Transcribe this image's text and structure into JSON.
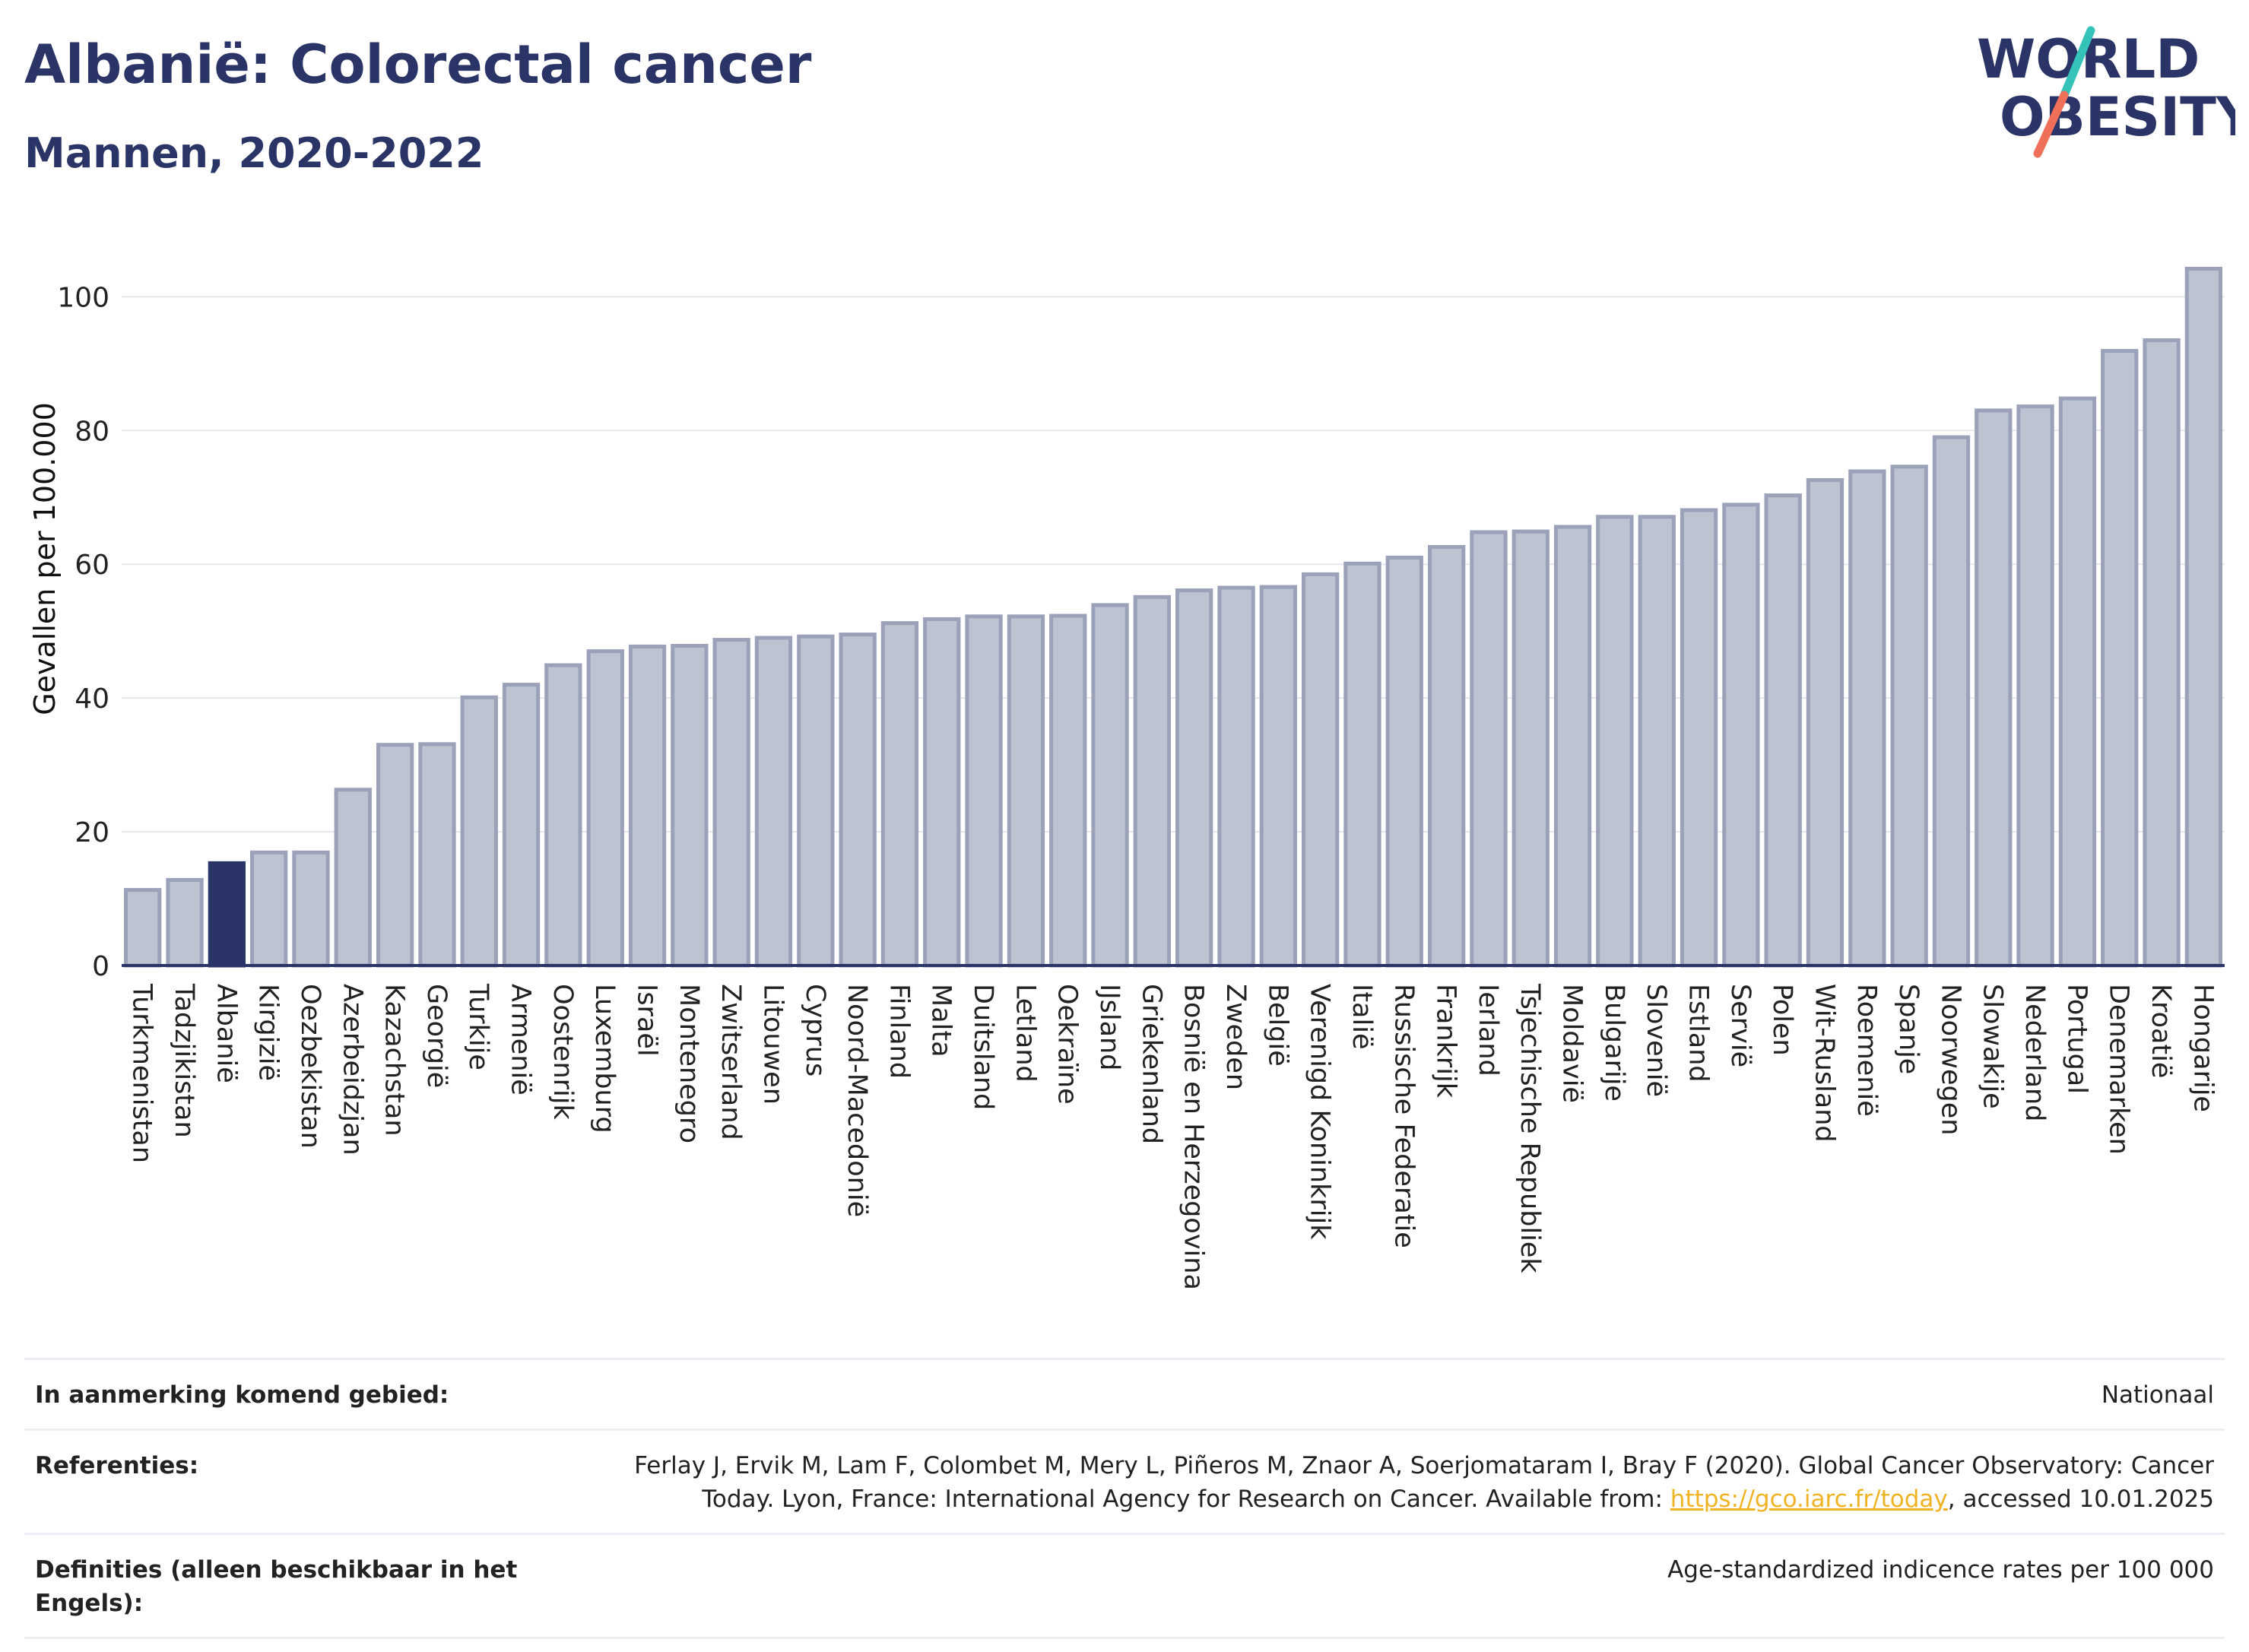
{
  "header": {
    "title": "Albanië: Colorectal cancer",
    "subtitle": "Mannen, 2020-2022"
  },
  "logo": {
    "line1": "WORLD",
    "line2": "OBESITY"
  },
  "colors": {
    "bar": "#bec3d1",
    "bar_border": "#9aa1b8",
    "highlight": "#2b3466",
    "text": "#2b3466",
    "slash_teal": "#35c2b8",
    "slash_coral": "#ef6f59"
  },
  "chart_data": {
    "type": "bar",
    "title": "Albanië: Colorectal cancer",
    "subtitle": "Mannen, 2020-2022",
    "xlabel": "",
    "ylabel": "Gevallen per 100.000",
    "ylim": [
      0,
      108
    ],
    "yticks": [
      0,
      20,
      40,
      60,
      80,
      100
    ],
    "grid": true,
    "highlight": "Albanië",
    "categories": [
      "Turkmenistan",
      "Tadzjikistan",
      "Albanië",
      "Kirgizië",
      "Oezbekistan",
      "Azerbeidzjan",
      "Kazachstan",
      "Georgië",
      "Turkije",
      "Armenië",
      "Oostenrijk",
      "Luxemburg",
      "Israël",
      "Montenegro",
      "Zwitserland",
      "Litouwen",
      "Cyprus",
      "Noord-Macedonië",
      "Finland",
      "Malta",
      "Duitsland",
      "Letland",
      "Oekraïne",
      "IJsland",
      "Griekenland",
      "Bosnië en Herzegovina",
      "Zweden",
      "België",
      "Verenigd Koninkrijk",
      "Italië",
      "Russische Federatie",
      "Frankrijk",
      "Ierland",
      "Tsjechische Republiek",
      "Moldavië",
      "Bulgarije",
      "Slovenië",
      "Estland",
      "Servië",
      "Polen",
      "Wit-Rusland",
      "Roemenië",
      "Spanje",
      "Noorwegen",
      "Slowakije",
      "Nederland",
      "Portugal",
      "Denemarken",
      "Kroatië",
      "Hongarije"
    ],
    "values": [
      11.3,
      12.8,
      15.3,
      16.9,
      16.9,
      26.3,
      33.0,
      33.1,
      40.1,
      42.0,
      44.9,
      47.0,
      47.7,
      47.8,
      48.7,
      49.0,
      49.2,
      49.5,
      51.2,
      51.8,
      52.2,
      52.2,
      52.3,
      53.9,
      55.1,
      56.1,
      56.5,
      56.6,
      58.5,
      60.1,
      61.0,
      62.6,
      64.8,
      64.9,
      65.6,
      67.1,
      67.1,
      68.1,
      68.9,
      70.3,
      72.6,
      73.9,
      74.6,
      79.0,
      83.0,
      83.6,
      84.8,
      91.9,
      93.5,
      104.2
    ]
  },
  "notes": [
    {
      "label": "In aanmerking komend gebied:",
      "value": "Nationaal"
    },
    {
      "label": "Referenties:",
      "value_before": "Ferlay J, Ervik M, Lam F, Colombet M, Mery L, Piñeros M, Znaor A, Soerjomataram I, Bray F (2020). Global Cancer Observatory: Cancer Today. Lyon, France: International Agency for Research on Cancer. Available from: ",
      "link": "https://gco.iarc.fr/today",
      "value_after": ", accessed 10.01.2025"
    },
    {
      "label": "Definities (alleen beschikbaar in het Engels):",
      "value": "Age-standardized indicence rates per 100 000"
    }
  ]
}
